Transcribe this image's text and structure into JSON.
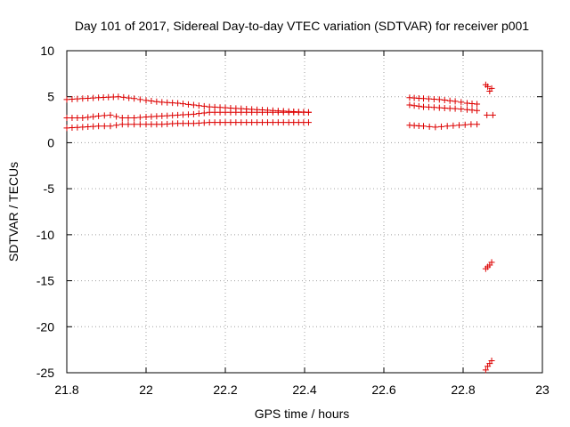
{
  "chart_data": {
    "type": "scatter",
    "title": "Day 101 of 2017, Sidereal Day-to-day VTEC variation (SDTVAR) for receiver p001",
    "xlabel": "GPS time / hours",
    "ylabel": "SDTVAR / TECUs",
    "xlim": [
      21.8,
      23.0
    ],
    "ylim": [
      -25,
      10
    ],
    "xticks": [
      21.8,
      22.0,
      22.2,
      22.4,
      22.6,
      22.8,
      23.0
    ],
    "xtick_labels": [
      "21.8",
      "22",
      "22.2",
      "22.4",
      "22.6",
      "22.8",
      "23"
    ],
    "yticks": [
      -25,
      -20,
      -15,
      -10,
      -5,
      0,
      5,
      10
    ],
    "ytick_labels": [
      "-25",
      "-20",
      "-15",
      "-10",
      "-5",
      "0",
      "5",
      "10"
    ],
    "grid": true,
    "marker": "+",
    "series_color": "#dd0000",
    "series": [
      {
        "name": "track-upper",
        "segments": [
          {
            "x": [
              21.8,
              21.84,
              21.88,
              21.93,
              21.97,
              22.0,
              22.04,
              22.08,
              22.12,
              22.16,
              22.2,
              22.24,
              22.28,
              22.32,
              22.36,
              22.41
            ],
            "y": [
              4.7,
              4.8,
              4.9,
              5.0,
              4.8,
              4.6,
              4.4,
              4.3,
              4.1,
              3.9,
              3.8,
              3.7,
              3.6,
              3.5,
              3.4,
              3.3
            ]
          },
          {
            "x": [
              22.665,
              22.7,
              22.74,
              22.78,
              22.81,
              22.835
            ],
            "y": [
              4.9,
              4.8,
              4.7,
              4.5,
              4.3,
              4.2
            ]
          }
        ]
      },
      {
        "name": "track-middle",
        "segments": [
          {
            "x": [
              21.8,
              21.84,
              21.88,
              21.91,
              21.94,
              21.97,
              22.0,
              22.04,
              22.08,
              22.12,
              22.16,
              22.2,
              22.24,
              22.28,
              22.32,
              22.36,
              22.41
            ],
            "y": [
              2.7,
              2.7,
              2.9,
              3.0,
              2.7,
              2.7,
              2.8,
              2.9,
              3.0,
              3.1,
              3.3,
              3.3,
              3.3,
              3.3,
              3.3,
              3.3,
              3.3
            ]
          },
          {
            "x": [
              22.665,
              22.7,
              22.74,
              22.78,
              22.81,
              22.835
            ],
            "y": [
              4.1,
              3.9,
              3.8,
              3.7,
              3.6,
              3.5
            ]
          },
          {
            "x": [
              22.86,
              22.875
            ],
            "y": [
              3.0,
              3.0
            ]
          }
        ]
      },
      {
        "name": "track-lower",
        "segments": [
          {
            "x": [
              21.8,
              21.84,
              21.88,
              21.91,
              21.94,
              21.97,
              22.0,
              22.04,
              22.08,
              22.12,
              22.16,
              22.2,
              22.24,
              22.28,
              22.32,
              22.36,
              22.41
            ],
            "y": [
              1.6,
              1.7,
              1.8,
              1.8,
              2.0,
              2.0,
              2.0,
              2.0,
              2.1,
              2.1,
              2.2,
              2.2,
              2.2,
              2.2,
              2.2,
              2.2,
              2.2
            ]
          },
          {
            "x": [
              22.665,
              22.7,
              22.73,
              22.76,
              22.79,
              22.82,
              22.835
            ],
            "y": [
              1.9,
              1.8,
              1.7,
              1.8,
              1.9,
              2.0,
              2.0
            ]
          }
        ]
      },
      {
        "name": "end-cluster-high",
        "segments": [
          {
            "x": [
              22.857,
              22.862,
              22.867,
              22.872
            ],
            "y": [
              6.3,
              6.1,
              5.6,
              5.9
            ]
          }
        ]
      },
      {
        "name": "end-cluster-minus13",
        "segments": [
          {
            "x": [
              22.857,
              22.862,
              22.867,
              22.872
            ],
            "y": [
              -13.7,
              -13.5,
              -13.3,
              -13.0
            ]
          }
        ]
      },
      {
        "name": "end-cluster-minus24",
        "segments": [
          {
            "x": [
              22.857,
              22.862,
              22.867,
              22.872
            ],
            "y": [
              -24.7,
              -24.3,
              -24.0,
              -23.7
            ]
          }
        ]
      }
    ]
  }
}
